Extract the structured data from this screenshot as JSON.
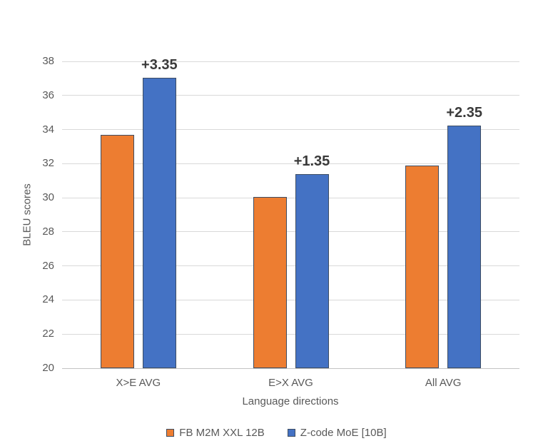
{
  "chart_data": {
    "type": "bar",
    "title": "",
    "xlabel": "Language directions",
    "ylabel": "BLEU scores",
    "categories": [
      "X>E AVG",
      "E>X AVG",
      "All AVG"
    ],
    "series": [
      {
        "name": "FB M2M XXL 12B",
        "color": "#ED7D31",
        "values": [
          33.7,
          30.05,
          31.88
        ]
      },
      {
        "name": "Z-code MoE [10B]",
        "color": "#4472C4",
        "values": [
          37.05,
          31.4,
          34.23
        ]
      }
    ],
    "annotations": [
      {
        "category": "X>E AVG",
        "series": "Z-code MoE [10B]",
        "text": "+3.35"
      },
      {
        "category": "E>X AVG",
        "series": "Z-code MoE [10B]",
        "text": "+1.35"
      },
      {
        "category": "All AVG",
        "series": "Z-code MoE [10B]",
        "text": "+2.35"
      }
    ],
    "ylim": [
      20,
      38
    ],
    "yticks": [
      20,
      22,
      24,
      26,
      28,
      30,
      32,
      34,
      36,
      38
    ],
    "grid": true,
    "legend_position": "bottom",
    "bar_border_color": "#3d4d63",
    "gridline_color": "#d9d9d9",
    "text_color": "#595959",
    "annotation_color": "#3a3a3a"
  }
}
